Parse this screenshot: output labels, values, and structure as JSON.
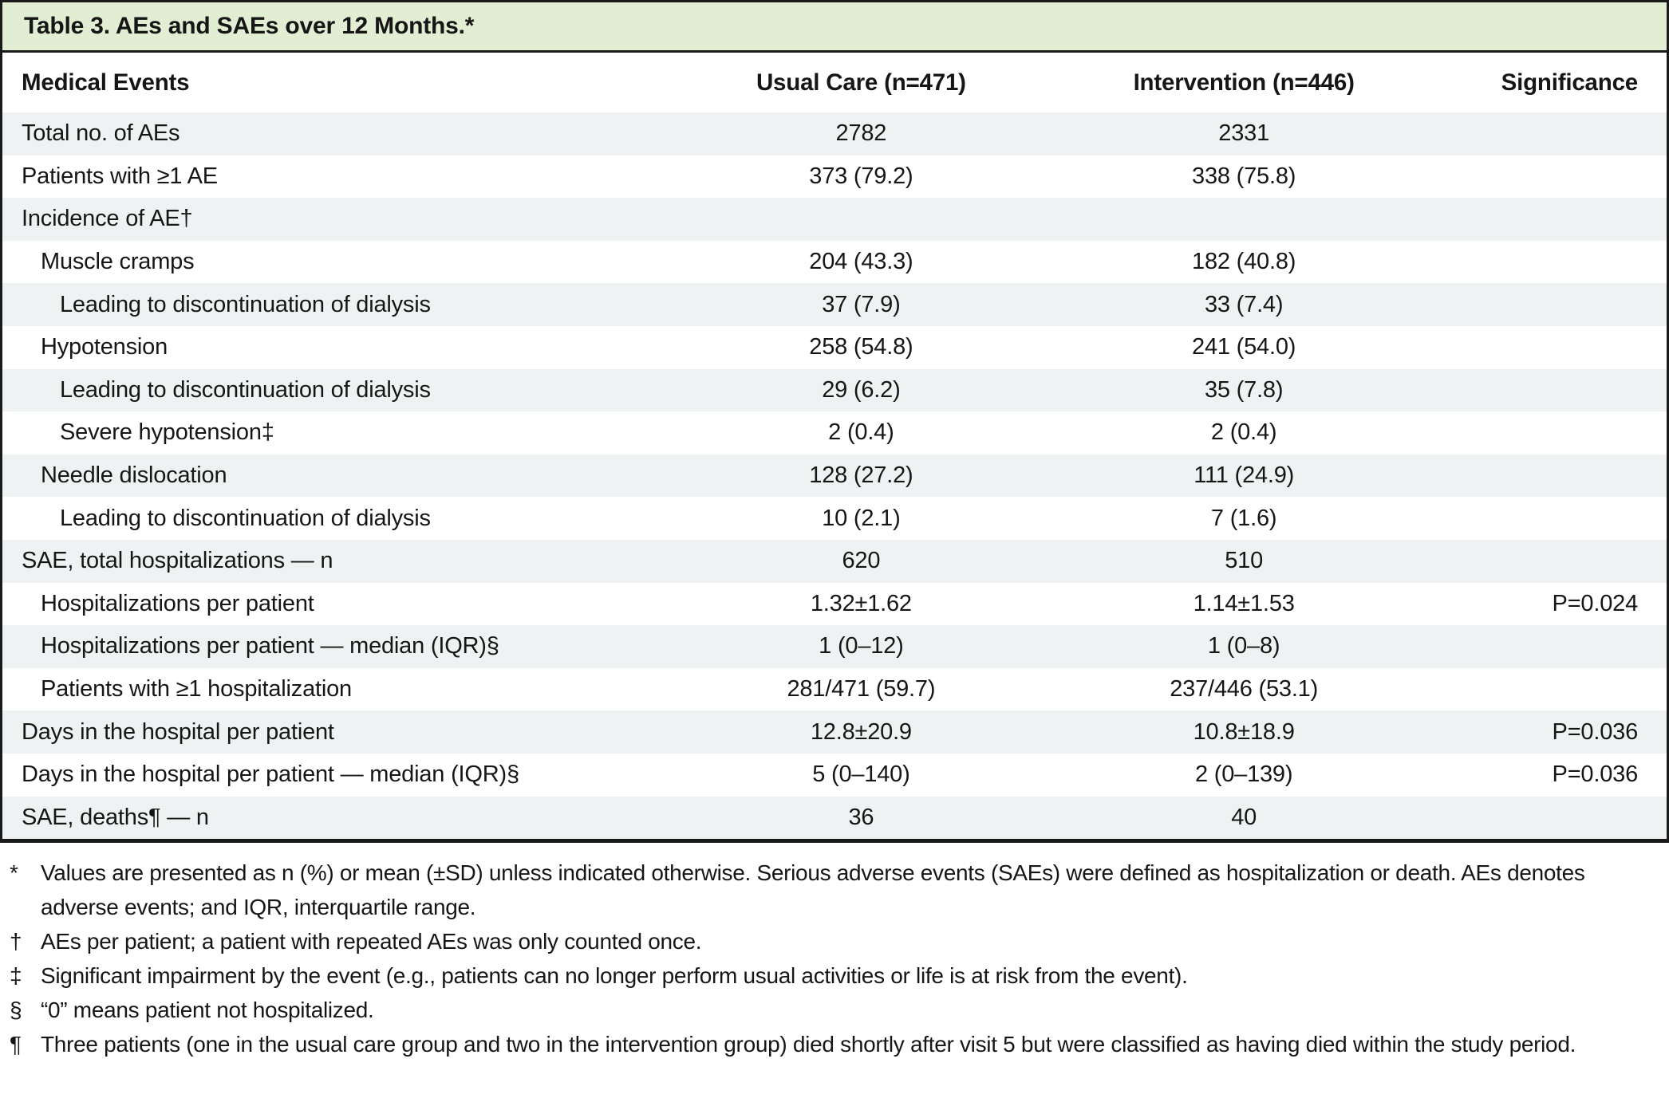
{
  "title": "Table 3. AEs and SAEs over 12 Months.*",
  "columns": [
    "Medical Events",
    "Usual Care (n=471)",
    "Intervention (n=446)",
    "Significance"
  ],
  "rows": [
    {
      "label": "Total no. of AEs",
      "indent": 0,
      "usual": "2782",
      "intervention": "2331",
      "significance": ""
    },
    {
      "label": "Patients with ≥1 AE",
      "indent": 0,
      "usual": "373 (79.2)",
      "intervention": "338 (75.8)",
      "significance": ""
    },
    {
      "label": "Incidence of AE†",
      "indent": 0,
      "usual": "",
      "intervention": "",
      "significance": ""
    },
    {
      "label": "Muscle cramps",
      "indent": 1,
      "usual": "204 (43.3)",
      "intervention": "182 (40.8)",
      "significance": ""
    },
    {
      "label": "Leading to discontinuation of dialysis",
      "indent": 2,
      "usual": "37 (7.9)",
      "intervention": "33 (7.4)",
      "significance": ""
    },
    {
      "label": "Hypotension",
      "indent": 1,
      "usual": "258 (54.8)",
      "intervention": "241 (54.0)",
      "significance": ""
    },
    {
      "label": "Leading to discontinuation of dialysis",
      "indent": 2,
      "usual": "29 (6.2)",
      "intervention": "35 (7.8)",
      "significance": ""
    },
    {
      "label": "Severe hypotension‡",
      "indent": 2,
      "usual": "2 (0.4)",
      "intervention": "2 (0.4)",
      "significance": ""
    },
    {
      "label": "Needle dislocation",
      "indent": 1,
      "usual": "128 (27.2)",
      "intervention": "111 (24.9)",
      "significance": ""
    },
    {
      "label": "Leading to discontinuation of dialysis",
      "indent": 2,
      "usual": "10 (2.1)",
      "intervention": "7 (1.6)",
      "significance": ""
    },
    {
      "label": "SAE, total hospitalizations — n",
      "indent": 0,
      "usual": "620",
      "intervention": "510",
      "significance": ""
    },
    {
      "label": "Hospitalizations per patient",
      "indent": 1,
      "usual": "1.32±1.62",
      "intervention": "1.14±1.53",
      "significance": "P=0.024"
    },
    {
      "label": "Hospitalizations per patient — median (IQR)§",
      "indent": 1,
      "usual": "1 (0–12)",
      "intervention": "1 (0–8)",
      "significance": ""
    },
    {
      "label": "Patients with ≥1 hospitalization",
      "indent": 1,
      "usual": "281/471 (59.7)",
      "intervention": "237/446 (53.1)",
      "significance": ""
    },
    {
      "label": "Days in the hospital per patient",
      "indent": 0,
      "usual": "12.8±20.9",
      "intervention": "10.8±18.9",
      "significance": "P=0.036"
    },
    {
      "label": "Days in the hospital per patient — median (IQR)§",
      "indent": 0,
      "usual": "5 (0–140)",
      "intervention": "2 (0–139)",
      "significance": "P=0.036"
    },
    {
      "label": "SAE, deaths¶ — n",
      "indent": 0,
      "usual": "36",
      "intervention": "40",
      "significance": ""
    }
  ],
  "footnotes": [
    {
      "marker": "*",
      "text": "Values are presented as n (%) or mean (±SD) unless indicated otherwise. Serious adverse events (SAEs) were defined as hospitalization or death. AEs denotes adverse events; and IQR, interquartile range."
    },
    {
      "marker": "†",
      "text": "AEs per patient; a patient with repeated AEs was only counted once."
    },
    {
      "marker": "‡",
      "text": "Significant impairment by the event (e.g., patients can no longer perform usual activities or life is at risk from the event)."
    },
    {
      "marker": "§",
      "text": "“0” means patient not hospitalized."
    },
    {
      "marker": "¶",
      "text": "Three patients (one in the usual care group and two in the intervention group) died shortly after visit 5 but were classified as having died within the study period."
    }
  ],
  "colors": {
    "title_bg": "#e2eed3",
    "row_alt_bg": "#eff2f3",
    "border_color": "#1a1a1a",
    "text_color": "#161616"
  }
}
